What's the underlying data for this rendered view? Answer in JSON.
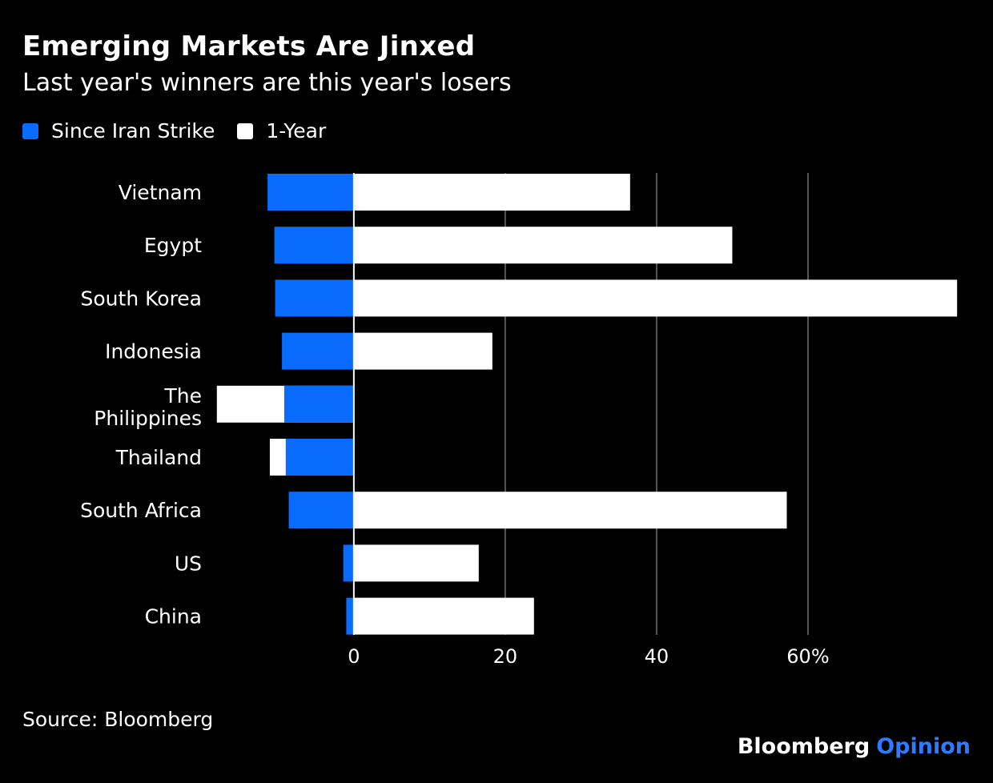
{
  "title": "Emerging Markets Are Jinxed",
  "subtitle": "Last year's winners are this year's losers",
  "source": "Source: Bloomberg",
  "brand": {
    "name": "Bloomberg",
    "suffix": "Opinion"
  },
  "colors": {
    "since_iran": "#0a6cff",
    "one_year": "#ffffff",
    "background": "#000000",
    "grid": "#555555",
    "brand_opinion": "#2f7bff"
  },
  "chart_data": {
    "type": "bar",
    "orientation": "horizontal",
    "categories": [
      "Vietnam",
      "Egypt",
      "South Korea",
      "Indonesia",
      "The Philippines",
      "Thailand",
      "South Africa",
      "US",
      "China"
    ],
    "series": [
      {
        "name": "Since Iran Strike",
        "values": [
          -11.4,
          -10.5,
          -10.4,
          -9.5,
          -9.2,
          -9.0,
          -8.6,
          -1.4,
          -1.0
        ]
      },
      {
        "name": "1-Year",
        "values": [
          36.5,
          50.0,
          79.7,
          18.3,
          -18.1,
          -11.1,
          57.2,
          16.5,
          23.8
        ]
      }
    ],
    "xticks": [
      0,
      20,
      40,
      60
    ],
    "xtick_labels": [
      "0",
      "20",
      "40",
      "60%"
    ],
    "xlim": [
      -18.5,
      80
    ],
    "grid": true,
    "legend": "top-left"
  }
}
